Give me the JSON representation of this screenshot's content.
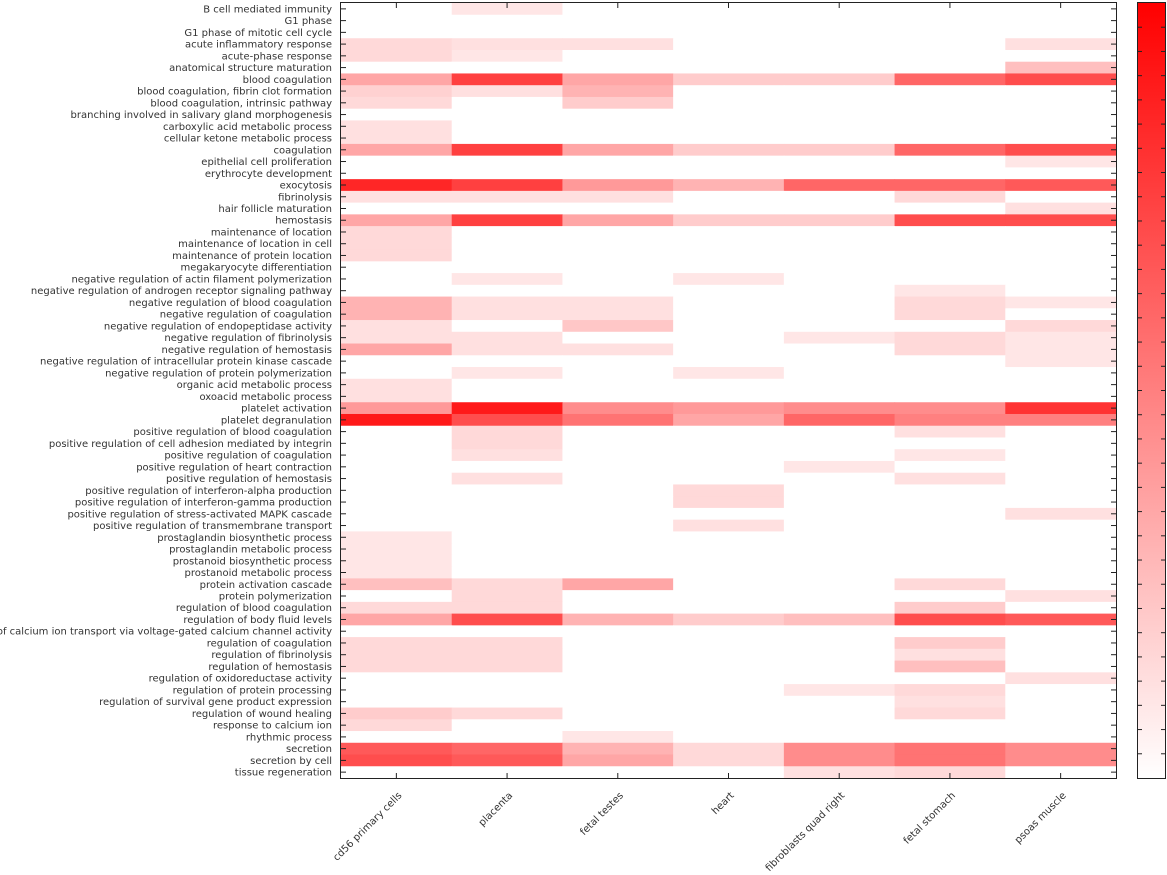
{
  "chart_data": {
    "type": "heatmap",
    "title": "",
    "xlabel": "",
    "ylabel": "",
    "color_low": "#ffffff",
    "color_high": "#ff0000",
    "colorbar": true,
    "columns": [
      "cd56 primary cells",
      "placenta",
      "fetal testes",
      "heart",
      "fibroblasts quad right",
      "fetal stomach",
      "psoas muscle"
    ],
    "rows": [
      {
        "label": "B cell mediated immunity",
        "values": [
          0,
          0.1,
          0,
          0,
          0,
          0,
          0
        ]
      },
      {
        "label": "G1 phase",
        "values": [
          0,
          0,
          0,
          0,
          0,
          0,
          0
        ]
      },
      {
        "label": "G1 phase of mitotic cell cycle",
        "values": [
          0,
          0,
          0,
          0,
          0,
          0,
          0
        ]
      },
      {
        "label": "acute inflammatory response",
        "values": [
          0.15,
          0.12,
          0.12,
          0,
          0,
          0,
          0.12
        ]
      },
      {
        "label": "acute-phase response",
        "values": [
          0.15,
          0.1,
          0,
          0,
          0,
          0,
          0
        ]
      },
      {
        "label": "anatomical structure maturation",
        "values": [
          0,
          0,
          0,
          0,
          0,
          0,
          0.25
        ]
      },
      {
        "label": "blood coagulation",
        "values": [
          0.35,
          0.75,
          0.35,
          0.2,
          0.2,
          0.6,
          0.7
        ]
      },
      {
        "label": "blood coagulation, fibrin clot formation",
        "values": [
          0.18,
          0.12,
          0.3,
          0,
          0,
          0,
          0
        ]
      },
      {
        "label": "blood coagulation, intrinsic pathway",
        "values": [
          0.15,
          0,
          0.2,
          0,
          0,
          0,
          0
        ]
      },
      {
        "label": "branching involved in salivary gland morphogenesis",
        "values": [
          0,
          0,
          0,
          0,
          0,
          0,
          0
        ]
      },
      {
        "label": "carboxylic acid metabolic process",
        "values": [
          0.12,
          0,
          0,
          0,
          0,
          0,
          0
        ]
      },
      {
        "label": "cellular ketone metabolic process",
        "values": [
          0.12,
          0,
          0,
          0,
          0,
          0,
          0
        ]
      },
      {
        "label": "coagulation",
        "values": [
          0.35,
          0.75,
          0.35,
          0.2,
          0.2,
          0.6,
          0.7
        ]
      },
      {
        "label": "epithelial cell proliferation",
        "values": [
          0,
          0,
          0,
          0,
          0,
          0,
          0.1
        ]
      },
      {
        "label": "erythrocyte development",
        "values": [
          0,
          0,
          0,
          0,
          0,
          0,
          0
        ]
      },
      {
        "label": "exocytosis",
        "values": [
          0.85,
          0.75,
          0.4,
          0.3,
          0.6,
          0.6,
          0.65
        ]
      },
      {
        "label": "fibrinolysis",
        "values": [
          0.12,
          0.12,
          0.12,
          0,
          0,
          0.15,
          0
        ]
      },
      {
        "label": "hair follicle maturation",
        "values": [
          0,
          0,
          0,
          0,
          0,
          0,
          0.12
        ]
      },
      {
        "label": "hemostasis",
        "values": [
          0.35,
          0.75,
          0.35,
          0.2,
          0.2,
          0.7,
          0.7
        ]
      },
      {
        "label": "maintenance of location",
        "values": [
          0.15,
          0,
          0,
          0,
          0,
          0,
          0
        ]
      },
      {
        "label": "maintenance of location in cell",
        "values": [
          0.15,
          0,
          0,
          0,
          0,
          0,
          0
        ]
      },
      {
        "label": "maintenance of protein location",
        "values": [
          0.15,
          0,
          0,
          0,
          0,
          0,
          0
        ]
      },
      {
        "label": "megakaryocyte differentiation",
        "values": [
          0,
          0,
          0,
          0,
          0,
          0,
          0
        ]
      },
      {
        "label": "negative regulation of actin filament polymerization",
        "values": [
          0,
          0.1,
          0,
          0.1,
          0,
          0,
          0
        ]
      },
      {
        "label": "negative regulation of androgen receptor signaling pathway",
        "values": [
          0,
          0,
          0,
          0,
          0,
          0.1,
          0
        ]
      },
      {
        "label": "negative regulation of blood coagulation",
        "values": [
          0.3,
          0.12,
          0.12,
          0,
          0,
          0.15,
          0.1
        ]
      },
      {
        "label": "negative regulation of coagulation",
        "values": [
          0.3,
          0.12,
          0.12,
          0,
          0,
          0.15,
          0
        ]
      },
      {
        "label": "negative regulation of endopeptidase activity",
        "values": [
          0.12,
          0,
          0.22,
          0,
          0,
          0,
          0.15
        ]
      },
      {
        "label": "negative regulation of fibrinolysis",
        "values": [
          0.12,
          0.12,
          0,
          0,
          0.1,
          0.15,
          0.1
        ]
      },
      {
        "label": "negative regulation of hemostasis",
        "values": [
          0.35,
          0.12,
          0.12,
          0,
          0,
          0.15,
          0.1
        ]
      },
      {
        "label": "negative regulation of intracellular protein kinase cascade",
        "values": [
          0,
          0,
          0,
          0,
          0,
          0,
          0.1
        ]
      },
      {
        "label": "negative regulation of protein polymerization",
        "values": [
          0,
          0.1,
          0,
          0.1,
          0,
          0,
          0
        ]
      },
      {
        "label": "organic acid metabolic process",
        "values": [
          0.12,
          0,
          0,
          0,
          0,
          0,
          0
        ]
      },
      {
        "label": "oxoacid metabolic process",
        "values": [
          0.12,
          0,
          0,
          0,
          0,
          0,
          0
        ]
      },
      {
        "label": "platelet activation",
        "values": [
          0.4,
          0.9,
          0.45,
          0.4,
          0.45,
          0.45,
          0.8
        ]
      },
      {
        "label": "platelet degranulation",
        "values": [
          0.9,
          0.7,
          0.55,
          0.35,
          0.6,
          0.5,
          0.5
        ]
      },
      {
        "label": "positive regulation of blood coagulation",
        "values": [
          0,
          0.15,
          0,
          0,
          0,
          0.12,
          0
        ]
      },
      {
        "label": "positive regulation of cell adhesion mediated by integrin",
        "values": [
          0,
          0.15,
          0,
          0,
          0,
          0,
          0
        ]
      },
      {
        "label": "positive regulation of coagulation",
        "values": [
          0,
          0.12,
          0,
          0,
          0,
          0.1,
          0
        ]
      },
      {
        "label": "positive regulation of heart contraction",
        "values": [
          0,
          0,
          0,
          0,
          0.1,
          0,
          0
        ]
      },
      {
        "label": "positive regulation of hemostasis",
        "values": [
          0,
          0.12,
          0,
          0,
          0,
          0.12,
          0
        ]
      },
      {
        "label": "positive regulation of interferon-alpha production",
        "values": [
          0,
          0,
          0,
          0.15,
          0,
          0,
          0
        ]
      },
      {
        "label": "positive regulation of interferon-gamma production",
        "values": [
          0,
          0,
          0,
          0.15,
          0,
          0,
          0
        ]
      },
      {
        "label": "positive regulation of stress-activated MAPK cascade",
        "values": [
          0,
          0,
          0,
          0,
          0,
          0,
          0.12
        ]
      },
      {
        "label": "positive regulation of transmembrane transport",
        "values": [
          0,
          0,
          0,
          0.12,
          0,
          0,
          0
        ]
      },
      {
        "label": "prostaglandin biosynthetic process",
        "values": [
          0.1,
          0,
          0,
          0,
          0,
          0,
          0
        ]
      },
      {
        "label": "prostaglandin metabolic process",
        "values": [
          0.1,
          0,
          0,
          0,
          0,
          0,
          0
        ]
      },
      {
        "label": "prostanoid biosynthetic process",
        "values": [
          0.1,
          0,
          0,
          0,
          0,
          0,
          0
        ]
      },
      {
        "label": "prostanoid metabolic process",
        "values": [
          0.1,
          0,
          0,
          0,
          0,
          0,
          0
        ]
      },
      {
        "label": "protein activation cascade",
        "values": [
          0.25,
          0.15,
          0.35,
          0,
          0,
          0.15,
          0
        ]
      },
      {
        "label": "protein polymerization",
        "values": [
          0,
          0.15,
          0,
          0,
          0,
          0,
          0.12
        ]
      },
      {
        "label": "regulation of blood coagulation",
        "values": [
          0.15,
          0.15,
          0,
          0,
          0,
          0.2,
          0
        ]
      },
      {
        "label": "regulation of body fluid levels",
        "values": [
          0.35,
          0.7,
          0.3,
          0.2,
          0.25,
          0.7,
          0.65
        ]
      },
      {
        "label": "regulation of calcium ion transport via voltage-gated calcium channel activity",
        "values": [
          0,
          0,
          0,
          0,
          0,
          0,
          0
        ]
      },
      {
        "label": "regulation of coagulation",
        "values": [
          0.15,
          0.15,
          0,
          0,
          0,
          0.2,
          0
        ]
      },
      {
        "label": "regulation of fibrinolysis",
        "values": [
          0.15,
          0.15,
          0,
          0,
          0,
          0.12,
          0
        ]
      },
      {
        "label": "regulation of hemostasis",
        "values": [
          0.15,
          0.15,
          0,
          0,
          0,
          0.25,
          0
        ]
      },
      {
        "label": "regulation of oxidoreductase activity",
        "values": [
          0,
          0,
          0,
          0,
          0,
          0,
          0.12
        ]
      },
      {
        "label": "regulation of protein processing",
        "values": [
          0,
          0,
          0,
          0,
          0.1,
          0.15,
          0
        ]
      },
      {
        "label": "regulation of survival gene product expression",
        "values": [
          0,
          0,
          0,
          0,
          0,
          0.12,
          0
        ]
      },
      {
        "label": "regulation of wound healing",
        "values": [
          0.2,
          0.15,
          0,
          0,
          0,
          0.15,
          0
        ]
      },
      {
        "label": "response to calcium ion",
        "values": [
          0.15,
          0,
          0,
          0,
          0,
          0,
          0
        ]
      },
      {
        "label": "rhythmic process",
        "values": [
          0,
          0,
          0.1,
          0,
          0,
          0,
          0
        ]
      },
      {
        "label": "secretion",
        "values": [
          0.65,
          0.6,
          0.3,
          0.15,
          0.45,
          0.55,
          0.45
        ]
      },
      {
        "label": "secretion by cell",
        "values": [
          0.7,
          0.65,
          0.35,
          0.15,
          0.45,
          0.55,
          0.45
        ]
      },
      {
        "label": "tissue regeneration",
        "values": [
          0,
          0,
          0,
          0,
          0.12,
          0.15,
          0
        ]
      }
    ]
  }
}
